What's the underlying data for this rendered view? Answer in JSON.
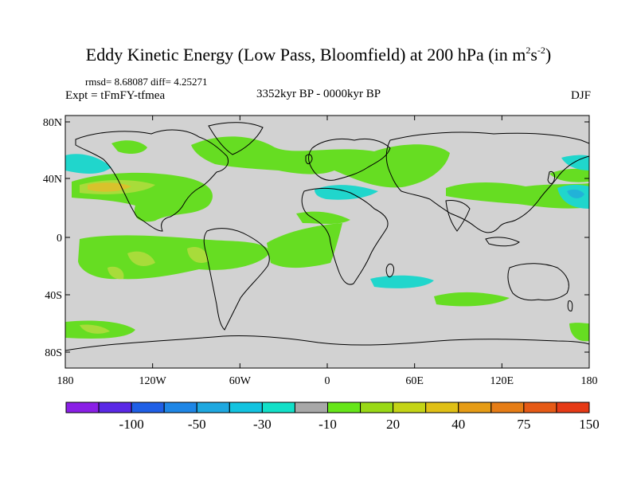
{
  "title": {
    "main": "Eddy Kinetic Energy (Low Pass, Bloomfield) at 200 hPa (in m",
    "sup1": "2",
    "mid": "s",
    "sup2": "-2",
    "end": ")"
  },
  "stats": "rmsd= 8.68087 diff= 4.25271",
  "experiment": "Expt = tFmFY-tfmea",
  "period": "3352kyr BP - 0000kyr BP",
  "season": "DJF",
  "axes": {
    "y_ticks": [
      "80N",
      "40N",
      "0",
      "40S",
      "80S"
    ],
    "x_ticks": [
      "180",
      "120W",
      "60W",
      "0",
      "60E",
      "120E",
      "180"
    ]
  },
  "colorbar": {
    "colors": [
      "#8a1fe6",
      "#5a28e6",
      "#1f5fe6",
      "#1e86e6",
      "#1ea8e0",
      "#12c3e0",
      "#12e0c8",
      "#a8a8a8",
      "#66e619",
      "#99d916",
      "#c4d416",
      "#e0c016",
      "#e69c16",
      "#e67d16",
      "#e65a16",
      "#e63a16"
    ],
    "labels": [
      "-100",
      "-50",
      "-30",
      "-10",
      "20",
      "40",
      "75",
      "150"
    ]
  },
  "colors": {
    "background": "#d2d2d2",
    "land_outline": "#000000",
    "positive_low": "#66dd22",
    "positive_mid": "#a8dc3a",
    "positive_high": "#d9c22c",
    "negative_low": "#20d6cc",
    "negative_mid": "#22b2d8"
  }
}
